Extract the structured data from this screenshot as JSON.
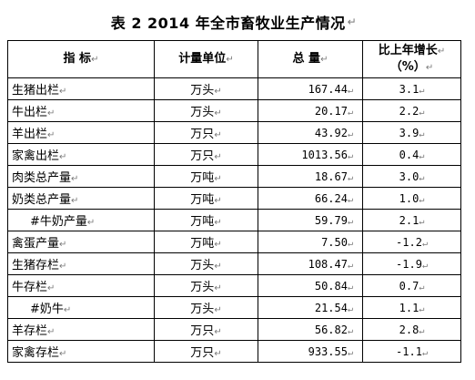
{
  "title": "表 2    2014 年全市畜牧业生产情况",
  "paragraph_mark": "↵",
  "headers": {
    "name": "指    标",
    "unit": "计量单位",
    "total": "总  量",
    "growth_line1": "比上年增长",
    "growth_line2": "（%）"
  },
  "rows": [
    {
      "name": "生猪出栏",
      "unit": "万头",
      "total": "167.44",
      "growth": "3.1",
      "indent": false
    },
    {
      "name": "牛出栏",
      "unit": "万头",
      "total": "20.17",
      "growth": "2.2",
      "indent": false
    },
    {
      "name": "羊出栏",
      "unit": "万只",
      "total": "43.92",
      "growth": "3.9",
      "indent": false
    },
    {
      "name": "家禽出栏",
      "unit": "万只",
      "total": "1013.56",
      "growth": "0.4",
      "indent": false
    },
    {
      "name": "肉类总产量",
      "unit": "万吨",
      "total": "18.67",
      "growth": "3.0",
      "indent": false
    },
    {
      "name": "奶类总产量",
      "unit": "万吨",
      "total": "66.24",
      "growth": "1.0",
      "indent": false
    },
    {
      "name": "#牛奶产量",
      "unit": "万吨",
      "total": "59.79",
      "growth": "2.1",
      "indent": true
    },
    {
      "name": "禽蛋产量",
      "unit": "万吨",
      "total": "7.50",
      "growth": "-1.2",
      "indent": false
    },
    {
      "name": "生猪存栏",
      "unit": "万头",
      "total": "108.47",
      "growth": "-1.9",
      "indent": false
    },
    {
      "name": "牛存栏",
      "unit": "万头",
      "total": "50.84",
      "growth": "0.7",
      "indent": false
    },
    {
      "name": "#奶牛",
      "unit": "万头",
      "total": "21.54",
      "growth": "1.1",
      "indent": true
    },
    {
      "name": "羊存栏",
      "unit": "万只",
      "total": "56.82",
      "growth": "2.8",
      "indent": false
    },
    {
      "name": "家禽存栏",
      "unit": "万只",
      "total": "933.55",
      "growth": "-1.1",
      "indent": false
    }
  ]
}
